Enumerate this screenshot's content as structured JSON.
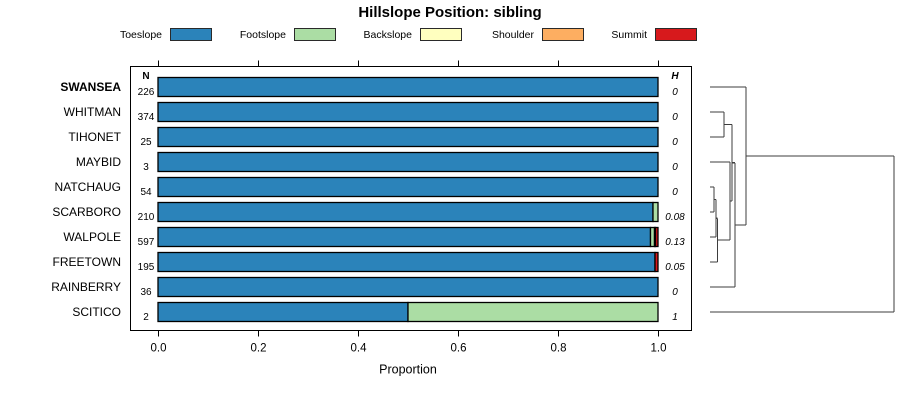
{
  "title": "Hillslope Position: sibling",
  "chart_data": {
    "type": "bar",
    "subtype": "horizontal-stacked-proportion",
    "title": "Hillslope Position: sibling",
    "xlabel": "Proportion",
    "xlim": [
      0,
      1
    ],
    "x_ticks": [
      0,
      0.2,
      0.4,
      0.6,
      0.8,
      1.0
    ],
    "x_tick_labels": [
      "0.0",
      "0.2",
      "0.4",
      "0.6",
      "0.8",
      "1.0"
    ],
    "grid": false,
    "legend_position": "top",
    "legend": [
      {
        "label": "Toeslope",
        "color": "#2B83BA"
      },
      {
        "label": "Footslope",
        "color": "#ABDDA4"
      },
      {
        "label": "Backslope",
        "color": "#FFFFBF"
      },
      {
        "label": "Shoulder",
        "color": "#FDAE61"
      },
      {
        "label": "Summit",
        "color": "#D7191C"
      }
    ],
    "n_column_header": "N",
    "h_column_header": "H",
    "rows": [
      {
        "name": "SWANSEA",
        "bold": true,
        "n": "226",
        "h": "0",
        "segments": [
          [
            "Toeslope",
            1
          ]
        ]
      },
      {
        "name": "WHITMAN",
        "bold": false,
        "n": "374",
        "h": "0",
        "segments": [
          [
            "Toeslope",
            1
          ]
        ]
      },
      {
        "name": "TIHONET",
        "bold": false,
        "n": "25",
        "h": "0",
        "segments": [
          [
            "Toeslope",
            1
          ]
        ]
      },
      {
        "name": "MAYBID",
        "bold": false,
        "n": "3",
        "h": "0",
        "segments": [
          [
            "Toeslope",
            1
          ]
        ]
      },
      {
        "name": "NATCHAUG",
        "bold": false,
        "n": "54",
        "h": "0",
        "segments": [
          [
            "Toeslope",
            1
          ]
        ]
      },
      {
        "name": "SCARBORO",
        "bold": false,
        "n": "210",
        "h": "0.08",
        "segments": [
          [
            "Toeslope",
            0.99
          ],
          [
            "Footslope",
            0.01
          ]
        ]
      },
      {
        "name": "WALPOLE",
        "bold": false,
        "n": "597",
        "h": "0.13",
        "segments": [
          [
            "Toeslope",
            0.985
          ],
          [
            "Footslope",
            0.008
          ],
          [
            "Backslope",
            0.002
          ],
          [
            "Summit",
            0.005
          ]
        ]
      },
      {
        "name": "FREETOWN",
        "bold": false,
        "n": "195",
        "h": "0.05",
        "segments": [
          [
            "Toeslope",
            0.994
          ],
          [
            "Summit",
            0.006
          ]
        ]
      },
      {
        "name": "RAINBERRY",
        "bold": false,
        "n": "36",
        "h": "0",
        "segments": [
          [
            "Toeslope",
            1
          ]
        ]
      },
      {
        "name": "SCITICO",
        "bold": false,
        "n": "2",
        "h": "1",
        "segments": [
          [
            "Toeslope",
            0.5
          ],
          [
            "Footslope",
            0.5
          ]
        ]
      }
    ],
    "dendrogram": {
      "h": 1.0,
      "children": [
        {
          "h": 0.196,
          "children": [
            {
              "leaf": "SWANSEA"
            },
            {
              "h": 0.136,
              "children": [
                {
                  "h": 0.12,
                  "children": [
                    {
                      "h": 0.076,
                      "children": [
                        {
                          "leaf": "WHITMAN"
                        },
                        {
                          "leaf": "TIHONET"
                        }
                      ]
                    },
                    {
                      "h": 0.109,
                      "children": [
                        {
                          "leaf": "MAYBID"
                        },
                        {
                          "h": 0.041,
                          "children": [
                            {
                              "h": 0.033,
                              "children": [
                                {
                                  "h": 0.022,
                                  "children": [
                                    {
                                      "leaf": "NATCHAUG"
                                    },
                                    {
                                      "leaf": "SCARBORO"
                                    }
                                  ]
                                },
                                {
                                  "leaf": "WALPOLE"
                                }
                              ]
                            },
                            {
                              "leaf": "FREETOWN"
                            }
                          ]
                        }
                      ]
                    }
                  ]
                },
                {
                  "leaf": "RAINBERRY"
                }
              ]
            }
          ]
        },
        {
          "leaf": "SCITICO"
        }
      ]
    }
  }
}
